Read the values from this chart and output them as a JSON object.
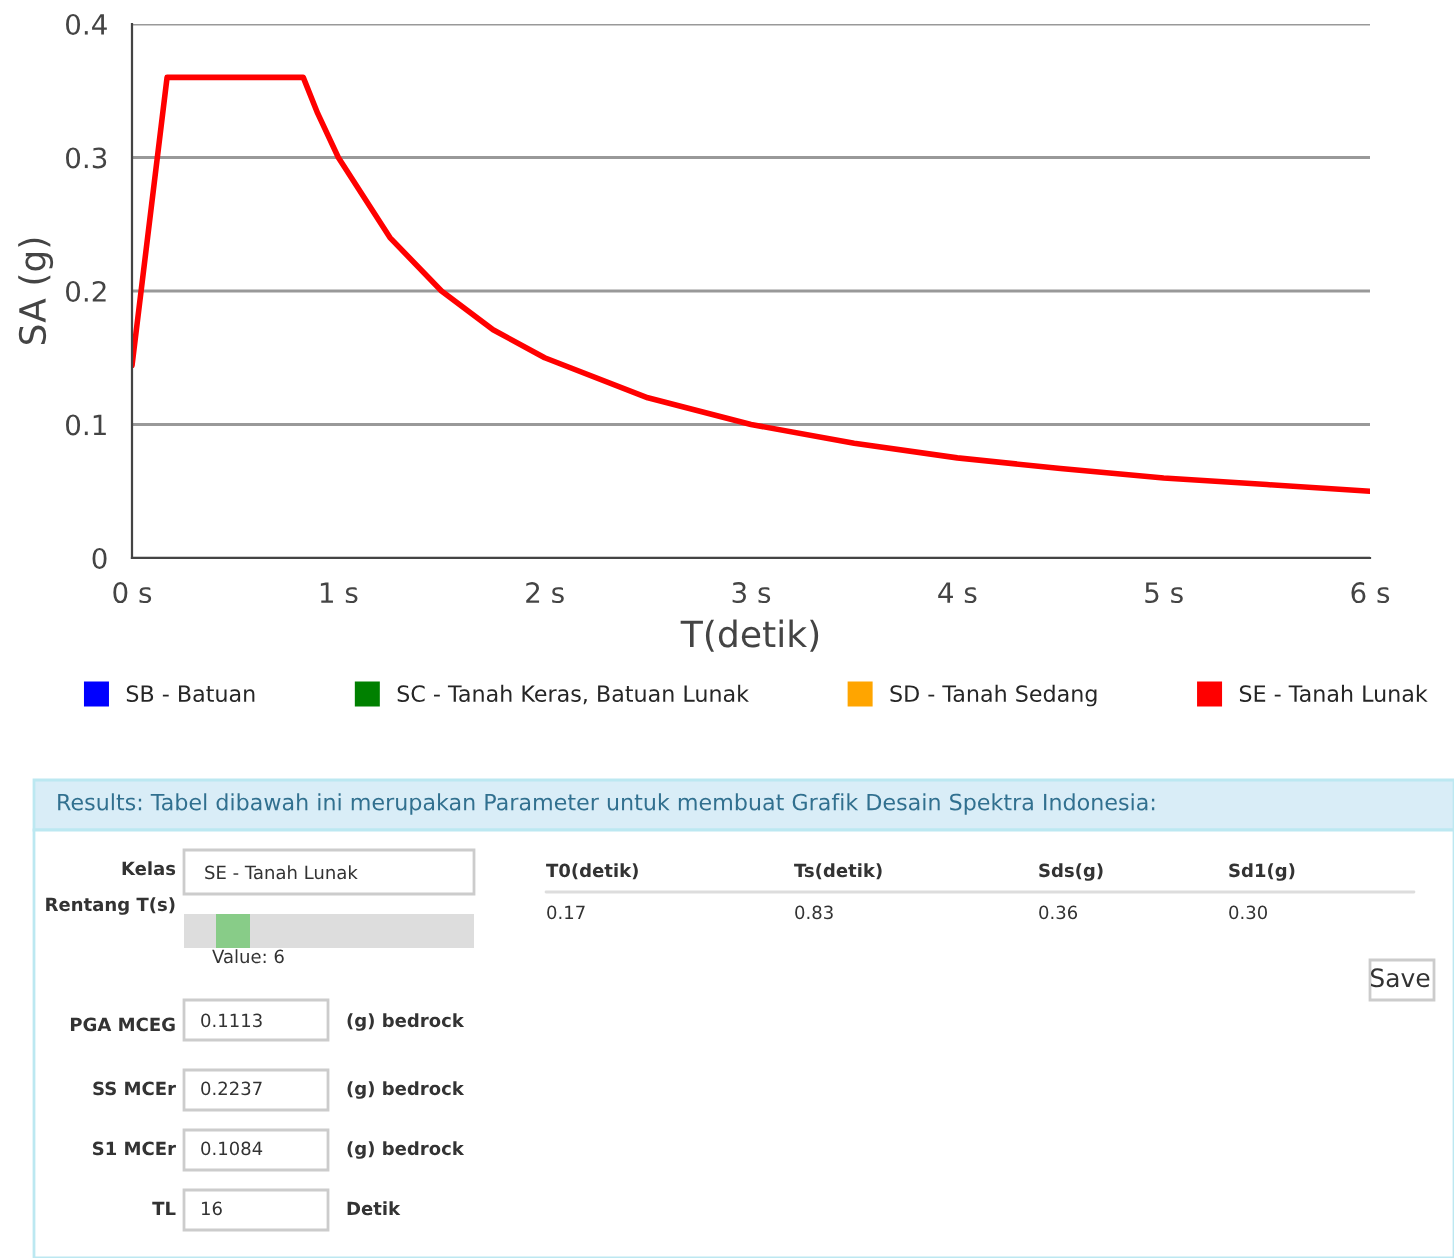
{
  "chart_data": [
    {
      "type": "line",
      "xlabel": "T(detik)",
      "ylabel": "SA (g)",
      "x": [
        0,
        0.17,
        0.83,
        0.9,
        1,
        1.25,
        1.5,
        1.75,
        2,
        2.5,
        3,
        3.5,
        4,
        4.5,
        5,
        5.5,
        6
      ],
      "series": [
        {
          "name": "SB - Batuan",
          "color": "#0000ff",
          "values": [
            null,
            null,
            null,
            null,
            null,
            null,
            null,
            null,
            null,
            null,
            null,
            null,
            null,
            null,
            null,
            null,
            null
          ]
        },
        {
          "name": "SC - Tanah Keras, Batuan Lunak",
          "color": "#008000",
          "values": [
            null,
            null,
            null,
            null,
            null,
            null,
            null,
            null,
            null,
            null,
            null,
            null,
            null,
            null,
            null,
            null,
            null
          ]
        },
        {
          "name": "SD - Tanah Sedang",
          "color": "#ffa500",
          "values": [
            null,
            null,
            null,
            null,
            null,
            null,
            null,
            null,
            null,
            null,
            null,
            null,
            null,
            null,
            null,
            null,
            null
          ]
        },
        {
          "name": "SE - Tanah Lunak",
          "color": "#ff0000",
          "values": [
            0.144,
            0.36,
            0.36,
            0.333,
            0.3,
            0.24,
            0.2,
            0.171,
            0.15,
            0.12,
            0.1,
            0.086,
            0.075,
            0.067,
            0.06,
            0.055,
            0.05
          ]
        }
      ],
      "xlim": [
        0,
        6
      ],
      "xticks": [
        {
          "value": 0,
          "label": "0 s"
        },
        {
          "value": 1,
          "label": "1 s"
        },
        {
          "value": 2,
          "label": "2 s"
        },
        {
          "value": 3,
          "label": "3 s"
        },
        {
          "value": 4,
          "label": "4 s"
        },
        {
          "value": 5,
          "label": "5 s"
        },
        {
          "value": 6,
          "label": "6 s"
        }
      ],
      "ylim": [
        0,
        0.4
      ],
      "yticks": [
        0,
        0.1,
        0.2,
        0.3,
        0.4
      ],
      "grid": "y",
      "legend": "bottom",
      "marker": "none",
      "line_style": "solid"
    },
    {
      "type": "other",
      "title": "Results: Tabel dibawah ini merupakan Parameter untuk membuat Grafik Desain Spektra Indonesia:",
      "annotations": [
        "Kelas",
        "SE - Tanah Lunak",
        "Rentang T(s)",
        "Value: 6",
        "PGA MCEG",
        "0.1113",
        "(g) bedrock",
        "SS MCEr",
        "0.2237",
        "(g) bedrock",
        "S1 MCEr",
        "0.1084",
        "(g) bedrock",
        "TL",
        "16",
        "Detik",
        "T0(detik)",
        "Ts(detik)",
        "Sds(g)",
        "Sd1(g)",
        "0.17",
        "0.83",
        "0.36",
        "0.30",
        "Save"
      ]
    }
  ]
}
